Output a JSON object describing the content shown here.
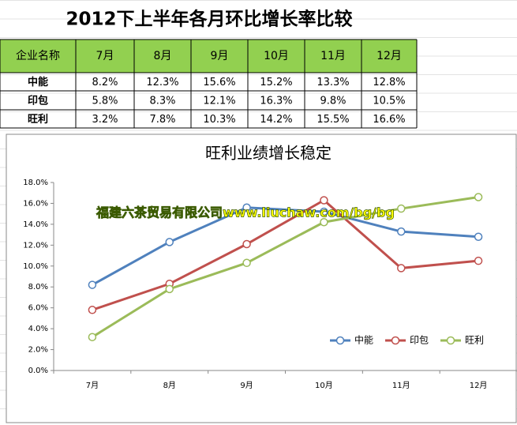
{
  "title": "2012下上半年各月环比增长率比较",
  "table": {
    "header": [
      "企业名称",
      "7月",
      "8月",
      "9月",
      "10月",
      "11月",
      "12月"
    ],
    "rows": [
      [
        "中能",
        "8.2%",
        "12.3%",
        "15.6%",
        "15.2%",
        "13.3%",
        "12.8%"
      ],
      [
        "印包",
        "5.8%",
        "8.3%",
        "12.1%",
        "16.3%",
        "9.8%",
        "10.5%"
      ],
      [
        "旺利",
        "3.2%",
        "7.8%",
        "10.3%",
        "14.2%",
        "15.5%",
        "16.6%"
      ]
    ]
  },
  "chart_data": {
    "type": "line",
    "title": "旺利业绩增长稳定",
    "categories": [
      "7月",
      "8月",
      "9月",
      "10月",
      "11月",
      "12月"
    ],
    "series": [
      {
        "name": "中能",
        "color": "#4f81bd",
        "values": [
          8.2,
          12.3,
          15.6,
          15.2,
          13.3,
          12.8
        ]
      },
      {
        "name": "印包",
        "color": "#c0504d",
        "values": [
          5.8,
          8.3,
          12.1,
          16.3,
          9.8,
          10.5
        ]
      },
      {
        "name": "旺利",
        "color": "#9bbb59",
        "values": [
          3.2,
          7.8,
          10.3,
          14.2,
          15.5,
          16.6
        ]
      }
    ],
    "ylim": [
      0,
      18
    ],
    "yticks": [
      {
        "value": 0,
        "label": "0.0%"
      },
      {
        "value": 2,
        "label": "2.0%"
      },
      {
        "value": 4,
        "label": "4.0%"
      },
      {
        "value": 6,
        "label": "6.0%"
      },
      {
        "value": 8,
        "label": "8.0%"
      },
      {
        "value": 10,
        "label": "10.0%"
      },
      {
        "value": 12,
        "label": "12.0%"
      },
      {
        "value": 14,
        "label": "14.0%"
      },
      {
        "value": 16,
        "label": "16.0%"
      },
      {
        "value": 18,
        "label": "18.0%"
      }
    ],
    "legend": "bottom-right",
    "watermark": "福建六茶贸易有限公司www.liuchaw.com/bg/bg"
  }
}
